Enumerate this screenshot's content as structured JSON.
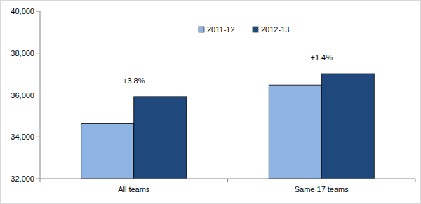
{
  "chart_data": {
    "type": "bar",
    "categories": [
      "All teams",
      "Same 17 teams"
    ],
    "series": [
      {
        "name": "2011-12",
        "color": "#8db4e2",
        "values": [
          34630,
          36480
        ]
      },
      {
        "name": "2012-13",
        "color": "#1f497d",
        "values": [
          35920,
          37020
        ]
      }
    ],
    "annotations": [
      "+3.8%",
      "+1.4%"
    ],
    "ylim": [
      32000,
      40000
    ],
    "yticks": [
      {
        "value": 32000,
        "label": "32,000"
      },
      {
        "value": 34000,
        "label": "34,000"
      },
      {
        "value": 36000,
        "label": "36,000"
      },
      {
        "value": 38000,
        "label": "38,000"
      },
      {
        "value": 40000,
        "label": "40,000"
      }
    ],
    "grid": false,
    "legend": "top"
  }
}
